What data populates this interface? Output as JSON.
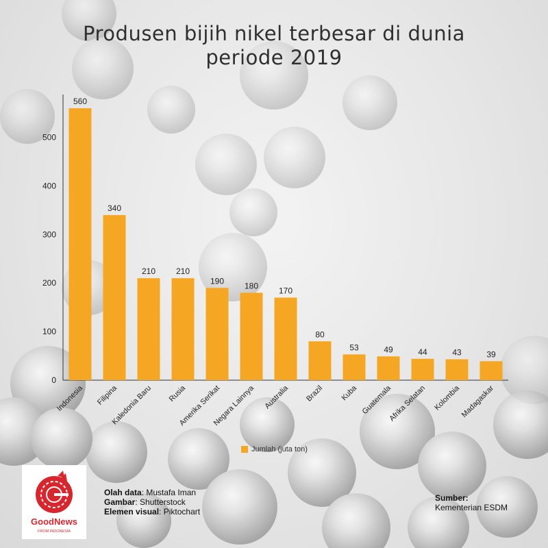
{
  "title_line1": "Produsen bijih nikel terbesar di dunia",
  "title_line2": "periode 2019",
  "chart_data": {
    "type": "bar",
    "title": "Produsen bijih nikel terbesar di dunia periode 2019",
    "categories": [
      "Indonesia",
      "Filipina",
      "Kaledonia Baru",
      "Rusia",
      "Amerika Serikat",
      "Negara Lainnya",
      "Australia",
      "Brazil",
      "Kuba",
      "Guatemala",
      "Afrika Selatan",
      "Kolombia",
      "Madagaskar"
    ],
    "values": [
      560,
      340,
      210,
      210,
      190,
      180,
      170,
      80,
      53,
      49,
      44,
      43,
      39
    ],
    "series_name": "Jumlah (juta ton)",
    "ylim": [
      0,
      560
    ],
    "yticks": [
      0,
      100,
      200,
      300,
      400,
      500
    ],
    "xlabel": "",
    "ylabel": "",
    "color": "#f5a623",
    "legend_position": "bottom-center"
  },
  "legend_label": "Jumlah (juta ton)",
  "logo": {
    "name": "GoodNews",
    "tagline": "FROM INDONESIA",
    "color": "#d7262e"
  },
  "credits": {
    "data_label": "Olah data",
    "data_value": ": Mustafa Iman",
    "image_label": "Gambar",
    "image_value": ": Shutterstock",
    "visual_label": "Elemen visual",
    "visual_value": ": Piktochart"
  },
  "source": {
    "label": "Sumber:",
    "value": "Kementerian ESDM"
  }
}
